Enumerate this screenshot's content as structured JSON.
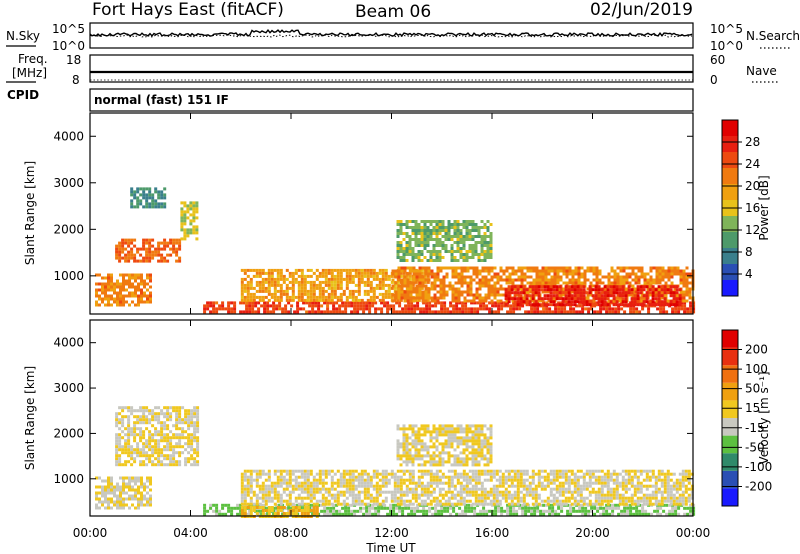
{
  "header": {
    "station": "Fort Hays East (fitACF)",
    "beam": "Beam 06",
    "date": "02/Jun/2019"
  },
  "noise_panel": {
    "left_label": "N.Sky",
    "right_label": "N.Search",
    "left_ticks": [
      "10^5",
      "10^0"
    ],
    "right_ticks": [
      "10^5",
      "10^0"
    ]
  },
  "freq_panel": {
    "left_label_1": "Freq.",
    "left_label_2": "[MHz]",
    "cpid_label": "CPID",
    "right_label": "Nave",
    "left_ticks": [
      "18",
      "8"
    ],
    "right_ticks": [
      "60",
      "0"
    ]
  },
  "cpid_text": "normal (fast) 151 IF",
  "colors": {
    "power_scale": [
      "#1a1aff",
      "#2a4fb4",
      "#3a7f8c",
      "#4d9a6a",
      "#7fb45a",
      "#e8c21a",
      "#f0a010",
      "#f07a10",
      "#ee4a10",
      "#e81e10",
      "#e00000"
    ],
    "velocity_scale": [
      "#1a1aff",
      "#2a4fb4",
      "#2f8a6a",
      "#5cc040",
      "#c8c8c0",
      "#f0c820",
      "#f0a010",
      "#f07010",
      "#e83010",
      "#e00000"
    ]
  },
  "chart_data": [
    {
      "type": "heatmap",
      "panel": "power",
      "ylabel": "Slant Range [km]",
      "xlabel": "Time UT",
      "x_ticks": [
        "00:00",
        "04:00",
        "08:00",
        "12:00",
        "16:00",
        "20:00",
        "00:00"
      ],
      "y_ticks": [
        1000,
        2000,
        3000,
        4000
      ],
      "xlim_hours": [
        0,
        24
      ],
      "ylim_km": [
        180,
        4500
      ],
      "colorbar_label": "Power [dB]",
      "colorbar_ticks": [
        "4",
        "8",
        "12",
        "16",
        "20",
        "24",
        "28"
      ],
      "colorbar_range": [
        0,
        30
      ],
      "echo_regions": [
        {
          "t0": 0.2,
          "t1": 2.4,
          "r0": 350,
          "r1": 1050,
          "value": 20
        },
        {
          "t0": 1.0,
          "t1": 3.6,
          "r0": 1300,
          "r1": 1800,
          "value": 22
        },
        {
          "t0": 3.6,
          "t1": 4.3,
          "r0": 1800,
          "r1": 2600,
          "value": 14
        },
        {
          "t0": 1.6,
          "t1": 3.0,
          "r0": 2500,
          "r1": 2900,
          "value": 8
        },
        {
          "t0": 4.5,
          "t1": 24.0,
          "r0": 200,
          "r1": 450,
          "value": 24
        },
        {
          "t0": 6.0,
          "t1": 13.5,
          "r0": 450,
          "r1": 1150,
          "value": 18
        },
        {
          "t0": 12.0,
          "t1": 24.0,
          "r0": 450,
          "r1": 1200,
          "value": 20
        },
        {
          "t0": 12.2,
          "t1": 16.0,
          "r0": 1300,
          "r1": 2200,
          "value": 12
        },
        {
          "t0": 16.5,
          "t1": 23.5,
          "r0": 400,
          "r1": 800,
          "value": 26
        }
      ]
    },
    {
      "type": "heatmap",
      "panel": "velocity",
      "ylabel": "Slant Range [km]",
      "xlabel": "Time UT",
      "x_ticks": [
        "00:00",
        "04:00",
        "08:00",
        "12:00",
        "16:00",
        "20:00",
        "00:00"
      ],
      "y_ticks": [
        1000,
        2000,
        3000,
        4000
      ],
      "xlim_hours": [
        0,
        24
      ],
      "ylim_km": [
        180,
        4500
      ],
      "colorbar_label": "Velocity [m s⁻¹]",
      "colorbar_ticks": [
        "-200",
        "-100",
        "-50",
        "-15",
        "15",
        "50",
        "100",
        "200"
      ],
      "colorbar_range": [
        -250,
        250
      ],
      "echo_regions": [
        {
          "t0": 0.2,
          "t1": 2.4,
          "r0": 350,
          "r1": 1050,
          "value": 0
        },
        {
          "t0": 1.0,
          "t1": 4.3,
          "r0": 1300,
          "r1": 2600,
          "value": 0
        },
        {
          "t0": 4.5,
          "t1": 24.0,
          "r0": 200,
          "r1": 450,
          "value": -60
        },
        {
          "t0": 6.0,
          "t1": 9.0,
          "r0": 200,
          "r1": 400,
          "value": 40
        },
        {
          "t0": 6.0,
          "t1": 24.0,
          "r0": 450,
          "r1": 1200,
          "value": 0
        },
        {
          "t0": 12.2,
          "t1": 16.0,
          "r0": 1300,
          "r1": 2200,
          "value": 0
        }
      ]
    }
  ]
}
